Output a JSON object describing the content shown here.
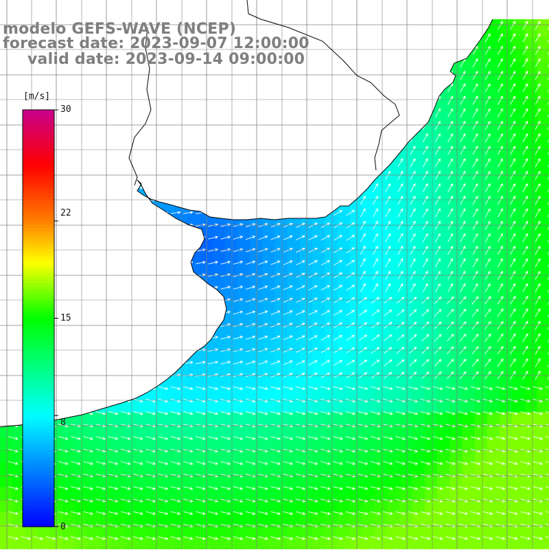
{
  "title": {
    "model": "modelo GEFS-WAVE (NCEP)",
    "forecast": "forecast date: 2023-09-07 12:00:00",
    "valid": "valid date: 2023-09-14 09:00:00"
  },
  "colorbar": {
    "unit": "[m/s]",
    "ticks": [
      "30",
      "22",
      "15",
      "8",
      "0"
    ],
    "tick_values": [
      30,
      22,
      15,
      8,
      0
    ],
    "min": 0,
    "max": 30,
    "stops": [
      {
        "v": 0,
        "c": "#0000ff"
      },
      {
        "v": 8,
        "c": "#00ffff"
      },
      {
        "v": 15,
        "c": "#00ff00"
      },
      {
        "v": 19,
        "c": "#ffff00"
      },
      {
        "v": 22,
        "c": "#ff7f00"
      },
      {
        "v": 26,
        "c": "#ff0000"
      },
      {
        "v": 30,
        "c": "#c8008c"
      }
    ]
  },
  "map": {
    "variable": "wind speed",
    "land_color": "#ffffff",
    "grid_color": "#808080",
    "arrow_color": "#ffffff",
    "coast_color": "#000000",
    "grid": true
  }
}
